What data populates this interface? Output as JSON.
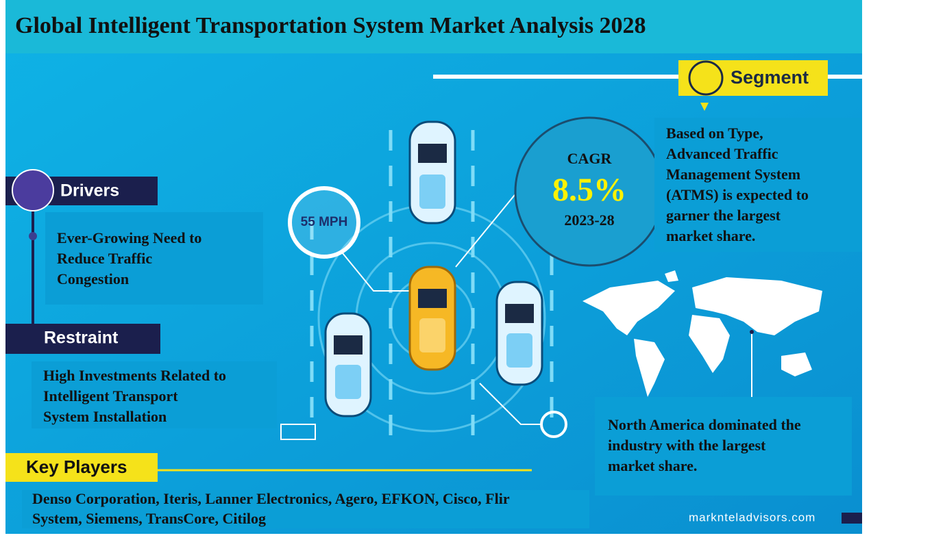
{
  "header": {
    "title": "Global Intelligent Transportation System Market Analysis 2028"
  },
  "segment": {
    "heading": "Segment",
    "text": [
      "Based on Type,",
      "Advanced Traffic",
      "Management System",
      "(ATMS) is expected to",
      "garner the largest",
      "market share."
    ]
  },
  "cagr": {
    "label": "CAGR",
    "value": "8.5%",
    "period": "2023-28"
  },
  "speed": "55 MPH",
  "drivers": {
    "heading": "Drivers",
    "text": [
      "Ever-Growing Need to",
      "Reduce Traffic",
      "Congestion"
    ]
  },
  "restraint": {
    "heading": "Restraint",
    "text": [
      "High Investments Related to",
      "Intelligent Transport",
      "System Installation"
    ]
  },
  "region": {
    "text": [
      "North America dominated the",
      "industry with the largest",
      "market share."
    ]
  },
  "key_players": {
    "heading": "Key Players",
    "text": [
      "Denso Corporation, Iteris, Lanner Electronics, Agero, EFKON, Cisco, Flir",
      "System, Siemens, TransCore, Citilog"
    ]
  },
  "footer": {
    "website": "marknteladvisors.com"
  }
}
